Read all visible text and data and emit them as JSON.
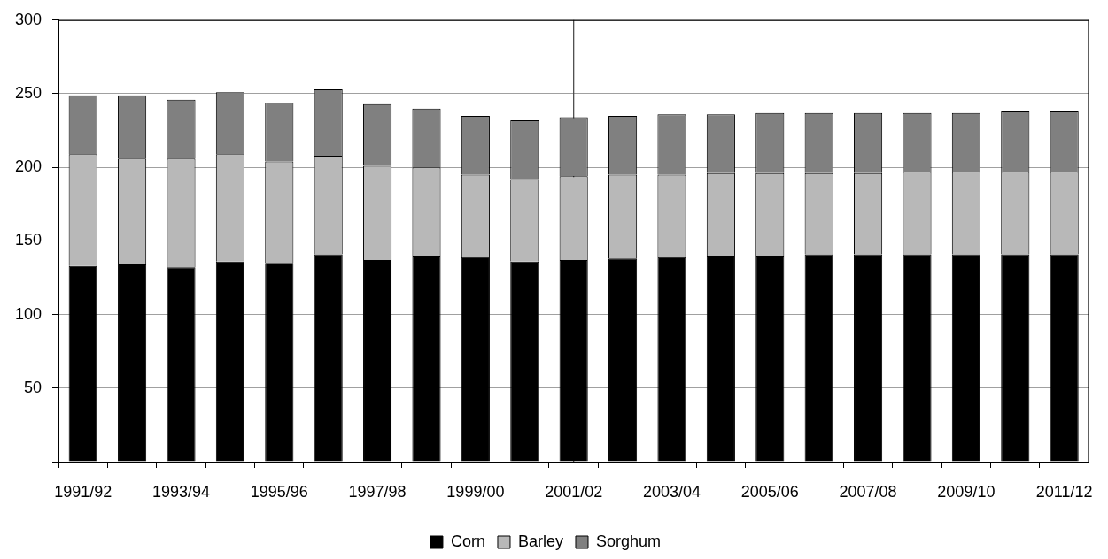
{
  "chart_data": {
    "type": "bar",
    "stacked": true,
    "categories": [
      "1991/92",
      null,
      "1993/94",
      null,
      "1995/96",
      null,
      "1997/98",
      null,
      "1999/00",
      null,
      "2001/02",
      null,
      "2003/04",
      null,
      "2005/06",
      null,
      "2007/08",
      null,
      "2009/10",
      null,
      "2011/12"
    ],
    "series": [
      {
        "name": "Corn",
        "color": "#000000",
        "values": [
          133,
          134,
          132,
          136,
          135,
          141,
          137,
          140,
          139,
          136,
          137,
          138,
          139,
          140,
          140,
          141,
          141,
          141,
          141,
          141,
          141
        ]
      },
      {
        "name": "Barley",
        "color": "#b8b8b8",
        "values": [
          76,
          72,
          74,
          73,
          69,
          67,
          64,
          60,
          56,
          56,
          57,
          57,
          56,
          56,
          56,
          55,
          55,
          56,
          56,
          56,
          56
        ]
      },
      {
        "name": "Sorghum",
        "color": "#808080",
        "values": [
          40,
          43,
          40,
          42,
          40,
          45,
          42,
          40,
          40,
          40,
          40,
          40,
          41,
          40,
          41,
          41,
          41,
          40,
          40,
          41,
          41
        ]
      }
    ],
    "ylim": [
      0,
      300
    ],
    "yticks": [
      {
        "value": 0,
        "label": null
      },
      50,
      100,
      150,
      200,
      250,
      300
    ],
    "grid": "y",
    "legend": "bottom",
    "ref_lines": [
      {
        "axis": "x",
        "value": "2001/02",
        "color": "#404040"
      }
    ]
  }
}
